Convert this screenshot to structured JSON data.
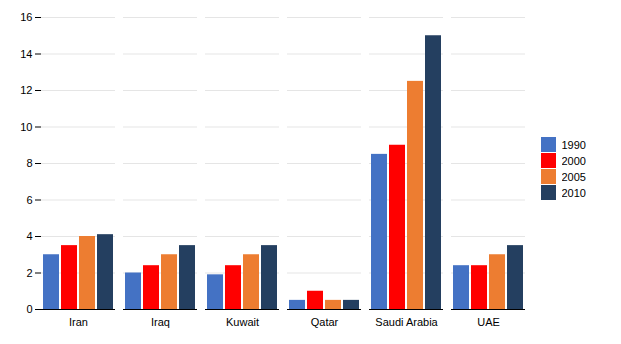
{
  "chart_data": {
    "type": "bar",
    "categories": [
      "Iran",
      "Iraq",
      "Kuwait",
      "Qatar",
      "Saudi Arabia",
      "UAE"
    ],
    "series": [
      {
        "name": "1990",
        "color": "#4472C4",
        "values": [
          3.0,
          2.0,
          1.9,
          0.5,
          8.5,
          2.4
        ]
      },
      {
        "name": "2000",
        "color": "#FF0000",
        "values": [
          3.5,
          2.4,
          2.4,
          1.0,
          9.0,
          2.4
        ]
      },
      {
        "name": "2005",
        "color": "#ED7D31",
        "values": [
          4.0,
          3.0,
          3.0,
          0.5,
          12.5,
          3.0
        ]
      },
      {
        "name": "2010",
        "color": "#243F60",
        "values": [
          4.1,
          3.5,
          3.5,
          0.5,
          15.0,
          3.5
        ]
      }
    ],
    "ylim": [
      0,
      16
    ],
    "yticks": [
      0,
      2,
      4,
      6,
      8,
      10,
      12,
      14,
      16
    ],
    "grid": true,
    "legend": "right"
  }
}
